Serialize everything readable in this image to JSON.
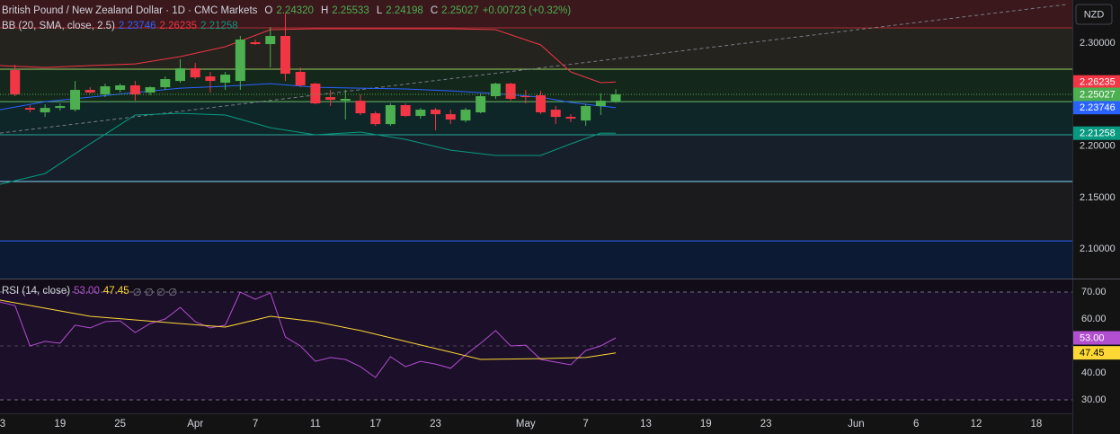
{
  "header": {
    "title": "British Pound / New Zealand Dollar · 1D · CMC Markets",
    "ohlc": [
      {
        "key": "O",
        "label": "2.24320"
      },
      {
        "key": "H",
        "label": "2.25533"
      },
      {
        "key": "L",
        "label": "2.24198"
      },
      {
        "key": "C",
        "label": "2.25027"
      }
    ],
    "change": "+0.00723 (+0.32%)"
  },
  "currency": "NZD",
  "chart_data": [
    {
      "type": "candlestick",
      "legend": "BB (20, SMA, close, 2.5)",
      "x": [
        1,
        2,
        3,
        4,
        5,
        6,
        7,
        8,
        9,
        10,
        11,
        12,
        13,
        14,
        15,
        16,
        17,
        18,
        19,
        20,
        21,
        22,
        23,
        24,
        25,
        26,
        27,
        28,
        29,
        30,
        31,
        32,
        33,
        34,
        35,
        36,
        37,
        38,
        39,
        40,
        41
      ],
      "open": [
        2.2738,
        2.2371,
        2.2328,
        2.2371,
        2.2354,
        2.2546,
        2.2502,
        2.2546,
        2.259,
        2.252,
        2.2572,
        2.2633,
        2.2756,
        2.2677,
        2.2616,
        2.2633,
        2.3009,
        2.2991,
        2.307,
        2.2721,
        2.2607,
        2.2476,
        2.2441,
        2.2441,
        2.2319,
        2.2214,
        2.2398,
        2.2293,
        2.2354,
        2.231,
        2.2249,
        2.2328,
        2.2485,
        2.2607,
        2.2485,
        2.2494,
        2.2354,
        2.2284,
        2.2249,
        2.2389,
        2.2432
      ],
      "high": [
        2.279,
        2.2398,
        2.2406,
        2.2415,
        2.2633,
        2.2572,
        2.2607,
        2.2607,
        2.2633,
        2.2581,
        2.2677,
        2.2843,
        2.2808,
        2.2721,
        2.2721,
        2.307,
        2.3035,
        2.3157,
        2.3288,
        2.2764,
        2.2616,
        2.2546,
        2.2546,
        2.2502,
        2.2337,
        2.2415,
        2.2415,
        2.2371,
        2.2371,
        2.2354,
        2.2371,
        2.2511,
        2.2616,
        2.2616,
        2.2546,
        2.2537,
        2.2389,
        2.231,
        2.2406,
        2.2511,
        2.25533
      ],
      "low": [
        2.2485,
        2.2328,
        2.2284,
        2.2345,
        2.2337,
        2.2511,
        2.2476,
        2.252,
        2.2441,
        2.2494,
        2.2546,
        2.2616,
        2.2651,
        2.252,
        2.2546,
        2.2546,
        2.2983,
        2.2764,
        2.2633,
        2.2572,
        2.2406,
        2.2389,
        2.2258,
        2.2302,
        2.2197,
        2.2197,
        2.2284,
        2.2267,
        2.2153,
        2.2214,
        2.2232,
        2.2319,
        2.2459,
        2.2441,
        2.2415,
        2.231,
        2.2214,
        2.2232,
        2.2197,
        2.2302,
        2.24198
      ],
      "close": [
        2.2502,
        2.2354,
        2.2371,
        2.2389,
        2.2546,
        2.252,
        2.2581,
        2.259,
        2.2502,
        2.2572,
        2.2651,
        2.2756,
        2.2668,
        2.2633,
        2.2694,
        2.3035,
        2.2991,
        2.307,
        2.2703,
        2.259,
        2.2415,
        2.245,
        2.2459,
        2.2319,
        2.2214,
        2.2398,
        2.2293,
        2.2354,
        2.231,
        2.2258,
        2.2354,
        2.2485,
        2.2607,
        2.2459,
        2.2476,
        2.2328,
        2.2284,
        2.2267,
        2.2389,
        2.2441,
        2.25027
      ],
      "close_label": "2.25027",
      "up_color": "#4caf50",
      "down_color": "#f23645",
      "bands": [
        {
          "color": "#2962ff",
          "x": [
            0,
            3,
            6,
            9,
            12,
            15,
            18,
            21,
            24,
            27,
            30,
            33,
            36,
            38,
            40,
            41
          ],
          "values": [
            2.2354,
            2.2432,
            2.2476,
            2.252,
            2.2563,
            2.2581,
            2.2607,
            2.2572,
            2.2563,
            2.2555,
            2.2537,
            2.2511,
            2.2476,
            2.2424,
            2.2389,
            2.23746
          ],
          "last_label": "2.23746"
        },
        {
          "color": "#f23645",
          "x": [
            0,
            3,
            6,
            9,
            12,
            15,
            18,
            21,
            24,
            27,
            30,
            33,
            36,
            38,
            40,
            41
          ],
          "values": [
            2.2782,
            2.2764,
            2.2782,
            2.2799,
            2.2869,
            2.2965,
            2.3131,
            2.314,
            2.314,
            2.314,
            2.314,
            2.3131,
            2.2983,
            2.2721,
            2.2616,
            2.26235
          ],
          "last_label": "2.26235"
        },
        {
          "color": "#089981",
          "x": [
            0,
            3,
            6,
            9,
            12,
            15,
            18,
            21,
            24,
            27,
            30,
            33,
            36,
            38,
            40,
            41
          ],
          "values": [
            2.1629,
            2.1734,
            2.2022,
            2.2302,
            2.2319,
            2.2302,
            2.2179,
            2.211,
            2.2136,
            2.2066,
            2.1961,
            2.1909,
            2.1909,
            2.2022,
            2.2127,
            2.21258
          ],
          "last_label": "2.21258"
        }
      ],
      "levels": [
        {
          "value": 2.3148,
          "color": "#b22833"
        },
        {
          "value": 2.2747,
          "color": "#9ccc65"
        },
        {
          "value": 2.2432,
          "color": "#66bb6a"
        },
        {
          "value": 2.211,
          "color": "#26a69a"
        },
        {
          "value": 2.1656,
          "color": "#81d4fa"
        },
        {
          "value": 2.1079,
          "color": "#2962ff"
        }
      ],
      "zones": [
        "#3a181c",
        "#24231d",
        "#14271b",
        "#0f2628",
        "#17202a",
        "#1b1b1d",
        "#0c1a33"
      ],
      "trendline": {
        "x": [
          0,
          71
        ],
        "values": [
          2.2127,
          2.3375
        ],
        "color": "#787b86"
      },
      "xlim": [
        0,
        71.4
      ],
      "ylim": [
        2.0714,
        2.3419
      ],
      "yticks": [
        {
          "value": 2.3,
          "label": "2.30000"
        },
        {
          "value": 2.2,
          "label": "2.20000"
        },
        {
          "value": 2.15,
          "label": "2.15000"
        },
        {
          "value": 2.1,
          "label": "2.10000"
        }
      ],
      "xticks": [
        {
          "value": 0,
          "label": "3"
        },
        {
          "value": 4,
          "label": "19"
        },
        {
          "value": 8,
          "label": "25"
        },
        {
          "value": 13,
          "label": "Apr"
        },
        {
          "value": 17,
          "label": "7"
        },
        {
          "value": 21,
          "label": "11"
        },
        {
          "value": 25,
          "label": "17"
        },
        {
          "value": 29,
          "label": "23"
        },
        {
          "value": 35,
          "label": "May"
        },
        {
          "value": 39,
          "label": "7"
        },
        {
          "value": 43,
          "label": "13"
        },
        {
          "value": 47,
          "label": "19"
        },
        {
          "value": 51,
          "label": "23"
        },
        {
          "value": 57,
          "label": "Jun"
        },
        {
          "value": 61,
          "label": "6"
        },
        {
          "value": 65,
          "label": "12"
        },
        {
          "value": 69,
          "label": "18"
        }
      ]
    },
    {
      "type": "line",
      "title": "RSI (14, close)",
      "extras": "∅ ∅ ∅ ∅",
      "series": [
        {
          "color": "#b24fd0",
          "x": [
            0,
            1,
            2,
            3,
            4,
            5,
            6,
            7,
            8,
            9,
            10,
            11,
            12,
            13,
            14,
            15,
            16,
            17,
            18,
            19,
            20,
            21,
            22,
            23,
            24,
            25,
            26,
            27,
            28,
            29,
            30,
            31,
            32,
            33,
            34,
            35,
            36,
            37,
            38,
            39,
            40,
            41
          ],
          "values": [
            66.3,
            65.0,
            50.0,
            51.7,
            51.0,
            57.7,
            56.7,
            59.0,
            59.3,
            55.0,
            58.3,
            60.0,
            64.3,
            59.0,
            56.7,
            57.7,
            70.0,
            67.3,
            69.7,
            53.3,
            50.0,
            44.3,
            45.7,
            45.0,
            42.3,
            38.3,
            46.0,
            42.3,
            44.3,
            43.3,
            41.7,
            46.7,
            51.0,
            55.7,
            50.0,
            50.3,
            45.0,
            44.0,
            43.0,
            48.3,
            50.0,
            53.0
          ],
          "last_label": "53.00",
          "label_text": "#ffffff"
        },
        {
          "color": "#fdd835",
          "x": [
            0,
            6,
            12,
            15,
            18,
            21,
            24,
            27,
            30,
            32,
            36,
            39,
            41
          ],
          "values": [
            67.0,
            61.0,
            58.3,
            57.0,
            61.0,
            59.0,
            55.7,
            51.7,
            47.7,
            45.0,
            45.3,
            45.7,
            47.45
          ],
          "last_label": "47.45",
          "label_text": "#000000"
        }
      ],
      "hlines": [
        70,
        50,
        30
      ],
      "ylim": [
        25,
        74.67
      ],
      "yticks": [
        {
          "value": 70,
          "label": "70.00"
        },
        {
          "value": 60,
          "label": "60.00"
        },
        {
          "value": 40,
          "label": "40.00"
        },
        {
          "value": 30,
          "label": "30.00"
        }
      ]
    }
  ]
}
